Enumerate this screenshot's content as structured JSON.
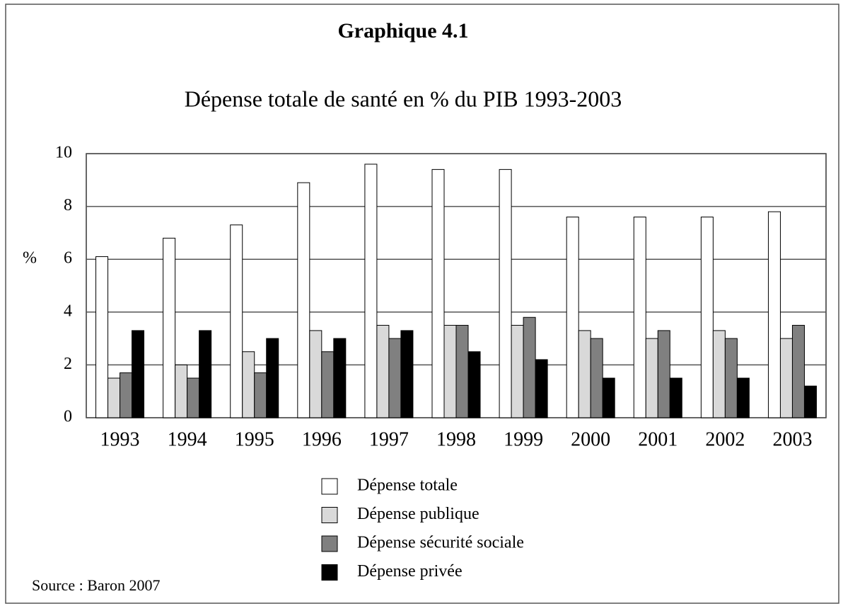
{
  "chart_data": {
    "type": "bar",
    "title": "Graphique 4.1",
    "subtitle": "Dépense totale de santé en % du PIB 1993-2003",
    "y_label": "%",
    "source": "Source : Baron 2007",
    "categories": [
      "1993",
      "1994",
      "1995",
      "1996",
      "1997",
      "1998",
      "1999",
      "2000",
      "2001",
      "2002",
      "2003"
    ],
    "series": [
      {
        "name": "Dépense totale",
        "color": "#ffffff",
        "values": [
          6.1,
          6.8,
          7.3,
          8.9,
          9.6,
          9.4,
          9.4,
          7.6,
          7.6,
          7.6,
          7.8
        ]
      },
      {
        "name": "Dépense publique",
        "color": "#d9d9d9",
        "values": [
          1.5,
          2.0,
          2.5,
          3.3,
          3.5,
          3.5,
          3.5,
          3.3,
          3.0,
          3.3,
          3.0
        ]
      },
      {
        "name": "Dépense sécurité sociale",
        "color": "#808080",
        "values": [
          1.7,
          1.5,
          1.7,
          2.5,
          3.0,
          3.5,
          3.8,
          3.0,
          3.3,
          3.0,
          3.5
        ]
      },
      {
        "name": "Dépense privée",
        "color": "#000000",
        "values": [
          3.3,
          3.3,
          3.0,
          3.0,
          3.3,
          2.5,
          2.2,
          1.5,
          1.5,
          1.5,
          1.2
        ]
      }
    ],
    "ylim": [
      0,
      10
    ],
    "yticks": [
      0,
      2,
      4,
      6,
      8,
      10
    ],
    "grid": true
  }
}
